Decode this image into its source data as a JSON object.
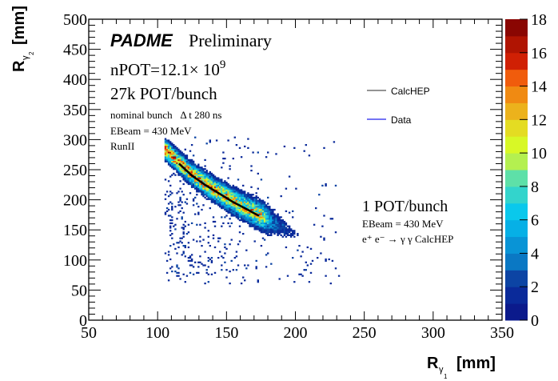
{
  "chart_data": {
    "type": "heatmap",
    "title": "",
    "xlabel": "R",
    "xlabel_sub": "γ",
    "xlabel_subsub": "1",
    "xlabel_unit": "[mm]",
    "ylabel": "R",
    "ylabel_sub": "γ",
    "ylabel_subsub": "2",
    "ylabel_unit": "[mm]",
    "xlim": [
      50,
      350
    ],
    "ylim": [
      0,
      500
    ],
    "x_ticks": [
      50,
      100,
      150,
      200,
      250,
      300,
      350
    ],
    "y_ticks": [
      0,
      50,
      100,
      150,
      200,
      250,
      300,
      350,
      400,
      450,
      500
    ],
    "z_ticks": [
      0,
      2,
      4,
      6,
      8,
      10,
      12,
      14,
      16,
      18
    ],
    "zlim": [
      0,
      18
    ],
    "colorbar_colors": [
      "#0b1a8c",
      "#0a2a9a",
      "#0c44a4",
      "#0b5cb0",
      "#0a78c4",
      "#0994d6",
      "#06b0e6",
      "#0ac8ec",
      "#33d4cc",
      "#5ee0a8",
      "#8ee880",
      "#b4f050",
      "#d8f826",
      "#e4dc22",
      "#ecb21c",
      "#f08a12",
      "#f05c0c",
      "#ee3004",
      "#d02004",
      "#b01402",
      "#8a0602"
    ],
    "histogram": {
      "description": "2D histogram of photon cluster radii; dense band along CalcHEP kinematic curve plus sparse background",
      "x_range": [
        105,
        232
      ],
      "y_range": [
        60,
        305
      ],
      "band_peak_counts": 14
    },
    "series": [
      {
        "name": "CalcHEP",
        "type": "line",
        "color": "#000000",
        "x": [
          116,
          125,
          135,
          145,
          155,
          165,
          173
        ],
        "y": [
          259,
          240,
          224,
          210,
          196,
          184,
          174
        ]
      },
      {
        "name": "Data",
        "type": "heatmap",
        "color": "#2222ee"
      }
    ],
    "legend": {
      "position": "top-right",
      "entries": [
        {
          "label": "CalcHEP",
          "color": "#000000"
        },
        {
          "label": "Data",
          "color": "#2222ee"
        }
      ]
    },
    "annotations": {
      "experiment": "PADME",
      "status": "Preliminary",
      "npot_prefix": "nPOT=12.1× 10",
      "npot_exp": "9",
      "pot_bunch": "27k POT/bunch",
      "bunch_info": "nominal bunch   Δ t 280 ns",
      "ebeam": "EBeam = 430 MeV",
      "run": "RunII",
      "mc_pot": "1 POT/bunch",
      "mc_ebeam": "EBeam = 430 MeV",
      "mc_process": "e⁺ e⁻ → γ γ CalcHEP"
    },
    "grid": false
  }
}
